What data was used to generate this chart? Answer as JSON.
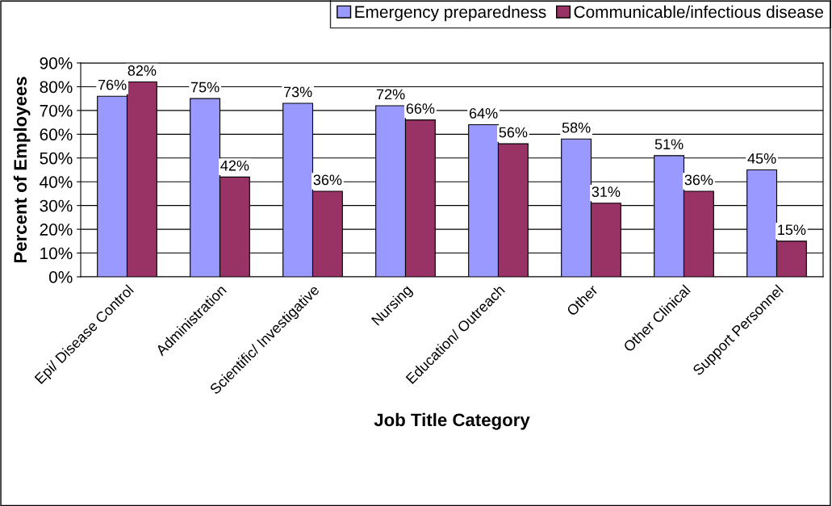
{
  "chart_data": {
    "type": "bar",
    "xlabel": "Job Title Category",
    "ylabel": "Percent of Employees",
    "categories": [
      "Epi/ Disease Control",
      "Administration",
      "Scientific/ Investigative",
      "Nursing",
      "Education/ Outreach",
      "Other",
      "Other Clinical",
      "Support Personnel"
    ],
    "series": [
      {
        "name": "Emergency preparedness",
        "color": "#9999ff",
        "values": [
          76,
          75,
          73,
          72,
          64,
          58,
          51,
          45
        ],
        "value_labels": [
          "76%",
          "75%",
          "73%",
          "72%",
          "64%",
          "58%",
          "51%",
          "45%"
        ]
      },
      {
        "name": "Communicable/infectious disease",
        "color": "#993366",
        "values": [
          82,
          42,
          36,
          66,
          56,
          31,
          36,
          15
        ],
        "value_labels": [
          "82%",
          "42%",
          "36%",
          "66%",
          "56%",
          "31%",
          "36%",
          "15%"
        ]
      }
    ],
    "ylim": [
      0,
      90
    ],
    "yticks": [
      {
        "value": 0,
        "label": "0%"
      },
      {
        "value": 10,
        "label": "10%"
      },
      {
        "value": 20,
        "label": "20%"
      },
      {
        "value": 30,
        "label": "30%"
      },
      {
        "value": 40,
        "label": "40%"
      },
      {
        "value": 50,
        "label": "50%"
      },
      {
        "value": 60,
        "label": "60%"
      },
      {
        "value": 70,
        "label": "70%"
      },
      {
        "value": 80,
        "label": "80%"
      },
      {
        "value": 90,
        "label": "90%"
      }
    ],
    "grid": "y",
    "legend": "top"
  }
}
